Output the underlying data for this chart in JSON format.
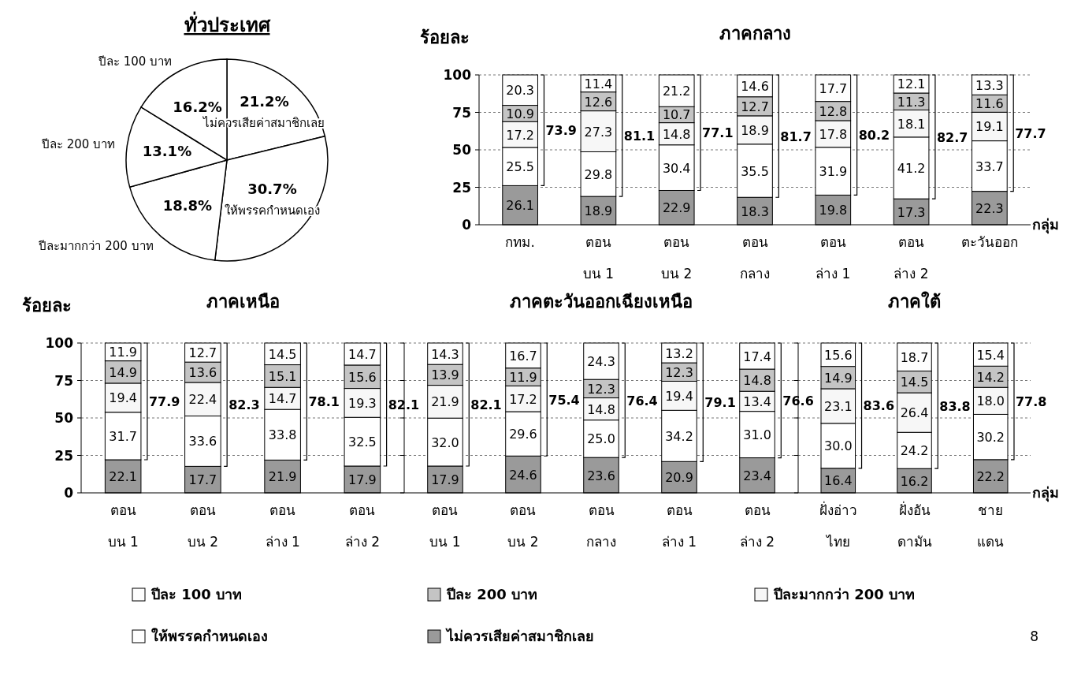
{
  "chart_data": [
    {
      "type": "pie",
      "title": "ทั่วประเทศ",
      "categories": [
        "ไม่ควรเสียค่าสมาชิกเลย",
        "ให้พรรคกำหนดเอง",
        "ปีละมากกว่า 200 บาท",
        "ปีละ 200 บาท",
        "ปีละ 100 บาท"
      ],
      "values": [
        21.2,
        30.7,
        18.8,
        13.1,
        16.2
      ],
      "value_labels": [
        "21.2%",
        "30.7%",
        "18.8%",
        "13.1%",
        "16.2%"
      ],
      "colors": [
        "#ffffff",
        "#ffffff",
        "#ffffff",
        "#ffffff",
        "#ffffff"
      ]
    },
    {
      "type": "bar",
      "stacked": true,
      "title": "ภาคกลาง",
      "ylabel": "ร้อยละ",
      "xlabel": "กลุ่ม",
      "categories": [
        "กทม.",
        "ตอน\nบน 1",
        "ตอน\nบน 2",
        "ตอน\nกลาง",
        "ตอน\nล่าง 1",
        "ตอน\nล่าง 2",
        "ตะวันออก"
      ],
      "ylim": [
        0,
        100
      ],
      "yticks": [
        0,
        25,
        50,
        75,
        100
      ],
      "grid": "y",
      "legend": "bottom",
      "series": [
        {
          "name": "ไม่ควรเสียค่าสมาชิกเลย",
          "color": "#9a9a9a",
          "values": [
            26.1,
            18.9,
            22.9,
            18.3,
            19.8,
            17.3,
            22.3
          ],
          "value_labels": [
            "26.1",
            "18.9",
            "22.9",
            "18.3",
            "19.8",
            "17.3",
            "22.3"
          ]
        },
        {
          "name": "ให้พรรคกำหนดเอง",
          "color": "#ffffff",
          "values": [
            25.5,
            29.8,
            30.4,
            35.5,
            31.9,
            41.2,
            33.7
          ],
          "value_labels": [
            "25.5",
            "29.8",
            "30.4",
            "35.5",
            "31.9",
            "41.2",
            "33.7"
          ]
        },
        {
          "name": "ปีละมากกว่า 200 บาท",
          "color": "#f7f7f7",
          "values": [
            17.2,
            27.3,
            14.8,
            18.9,
            17.8,
            18.1,
            19.1
          ],
          "value_labels": [
            "17.2",
            "27.3",
            "14.8",
            "18.9",
            "17.8",
            "18.1",
            "19.1"
          ]
        },
        {
          "name": "ปีละ 200 บาท",
          "color": "#c4c4c4",
          "values": [
            10.9,
            12.6,
            10.7,
            12.7,
            12.8,
            11.3,
            11.6
          ],
          "value_labels": [
            "10.9",
            "12.6",
            "10.7",
            "12.7",
            "12.8",
            "11.3",
            "11.6"
          ]
        },
        {
          "name": "ปีละ 100 บาท",
          "color": "#fdfdfd",
          "values": [
            20.3,
            11.4,
            21.2,
            14.6,
            17.7,
            12.1,
            13.3
          ],
          "value_labels": [
            "20.3",
            "11.4",
            "21.2",
            "14.6",
            "17.7",
            "12.1",
            "13.3"
          ]
        }
      ],
      "annotations": [
        "73.9",
        "81.1",
        "77.1",
        "81.7",
        "80.2",
        "82.7",
        "77.7"
      ]
    },
    {
      "type": "bar",
      "stacked": true,
      "title": "ภาคเหนือ",
      "ylabel": "ร้อยละ",
      "categories": [
        "ตอน\nบน 1",
        "ตอน\nบน 2",
        "ตอน\nล่าง 1",
        "ตอน\nล่าง 2"
      ],
      "ylim": [
        0,
        100
      ],
      "yticks": [
        0,
        25,
        50,
        75,
        100
      ],
      "grid": "y",
      "series": [
        {
          "color": "#9a9a9a",
          "values": [
            22.1,
            17.7,
            21.9,
            17.9
          ],
          "value_labels": [
            "22.1",
            "17.7",
            "21.9",
            "17.9"
          ]
        },
        {
          "color": "#ffffff",
          "values": [
            31.7,
            33.6,
            33.8,
            32.5
          ],
          "value_labels": [
            "31.7",
            "33.6",
            "33.8",
            "32.5"
          ]
        },
        {
          "color": "#f7f7f7",
          "values": [
            19.4,
            22.4,
            14.7,
            19.3
          ],
          "value_labels": [
            "19.4",
            "22.4",
            "14.7",
            "19.3"
          ]
        },
        {
          "color": "#c4c4c4",
          "values": [
            14.9,
            13.6,
            15.1,
            15.6
          ],
          "value_labels": [
            "14.9",
            "13.6",
            "15.1",
            "15.6"
          ]
        },
        {
          "color": "#fdfdfd",
          "values": [
            11.9,
            12.7,
            14.5,
            14.7
          ],
          "value_labels": [
            "11.9",
            "12.7",
            "14.5",
            "14.7"
          ]
        }
      ],
      "annotations": [
        "77.9",
        "82.3",
        "78.1",
        "82.1"
      ]
    },
    {
      "type": "bar",
      "stacked": true,
      "title": "ภาคตะวันออกเฉียงเหนือ",
      "categories": [
        "ตอน\nบน 1",
        "ตอน\nบน 2",
        "ตอน\nกลาง",
        "ตอน\nล่าง 1",
        "ตอน\nล่าง 2"
      ],
      "ylim": [
        0,
        100
      ],
      "yticks": [
        0,
        25,
        50,
        75,
        100
      ],
      "tick_labels": "x",
      "grid": "y",
      "series": [
        {
          "color": "#9a9a9a",
          "values": [
            17.9,
            24.6,
            23.6,
            20.9,
            23.4
          ],
          "value_labels": [
            "17.9",
            "24.6",
            "23.6",
            "20.9",
            "23.4"
          ]
        },
        {
          "color": "#ffffff",
          "values": [
            32.0,
            29.6,
            25.0,
            34.2,
            31.0
          ],
          "value_labels": [
            "32.0",
            "29.6",
            "25.0",
            "34.2",
            "31.0"
          ]
        },
        {
          "color": "#f7f7f7",
          "values": [
            21.9,
            17.2,
            14.8,
            19.4,
            13.4
          ],
          "value_labels": [
            "21.9",
            "17.2",
            "14.8",
            "19.4",
            "13.4"
          ]
        },
        {
          "color": "#c4c4c4",
          "values": [
            13.9,
            11.9,
            12.3,
            12.3,
            14.8
          ],
          "value_labels": [
            "13.9",
            "11.9",
            "12.3",
            "12.3",
            "14.8"
          ]
        },
        {
          "color": "#fdfdfd",
          "values": [
            14.3,
            16.7,
            24.3,
            13.2,
            17.4
          ],
          "value_labels": [
            "14.3",
            "16.7",
            "24.3",
            "13.2",
            "17.4"
          ]
        }
      ],
      "annotations": [
        "82.1",
        "75.4",
        "76.4",
        "79.1",
        "76.6"
      ]
    },
    {
      "type": "bar",
      "stacked": true,
      "title": "ภาคใต้",
      "xlabel": "กลุ่ม",
      "categories": [
        "ฝั่งอ่าว\nไทย",
        "ฝั่งอัน\nดามัน",
        "ชาย\nแดน"
      ],
      "ylim": [
        0,
        100
      ],
      "yticks": [
        0,
        25,
        50,
        75,
        100
      ],
      "tick_labels": "x",
      "grid": "y",
      "series": [
        {
          "color": "#9a9a9a",
          "values": [
            16.4,
            16.2,
            22.2
          ],
          "value_labels": [
            "16.4",
            "16.2",
            "22.2"
          ]
        },
        {
          "color": "#ffffff",
          "values": [
            30.0,
            24.2,
            30.2
          ],
          "value_labels": [
            "30.0",
            "24.2",
            "30.2"
          ]
        },
        {
          "color": "#f7f7f7",
          "values": [
            23.1,
            26.4,
            18.0
          ],
          "value_labels": [
            "23.1",
            "26.4",
            "18.0"
          ]
        },
        {
          "color": "#c4c4c4",
          "values": [
            14.9,
            14.5,
            14.2
          ],
          "value_labels": [
            "14.9",
            "14.5",
            "14.2"
          ]
        },
        {
          "color": "#fdfdfd",
          "values": [
            15.6,
            18.7,
            15.4
          ],
          "value_labels": [
            "15.6",
            "18.7",
            "15.4"
          ]
        }
      ],
      "annotations": [
        "83.6",
        "83.8",
        "77.8",
        "8"
      ]
    }
  ]
}
